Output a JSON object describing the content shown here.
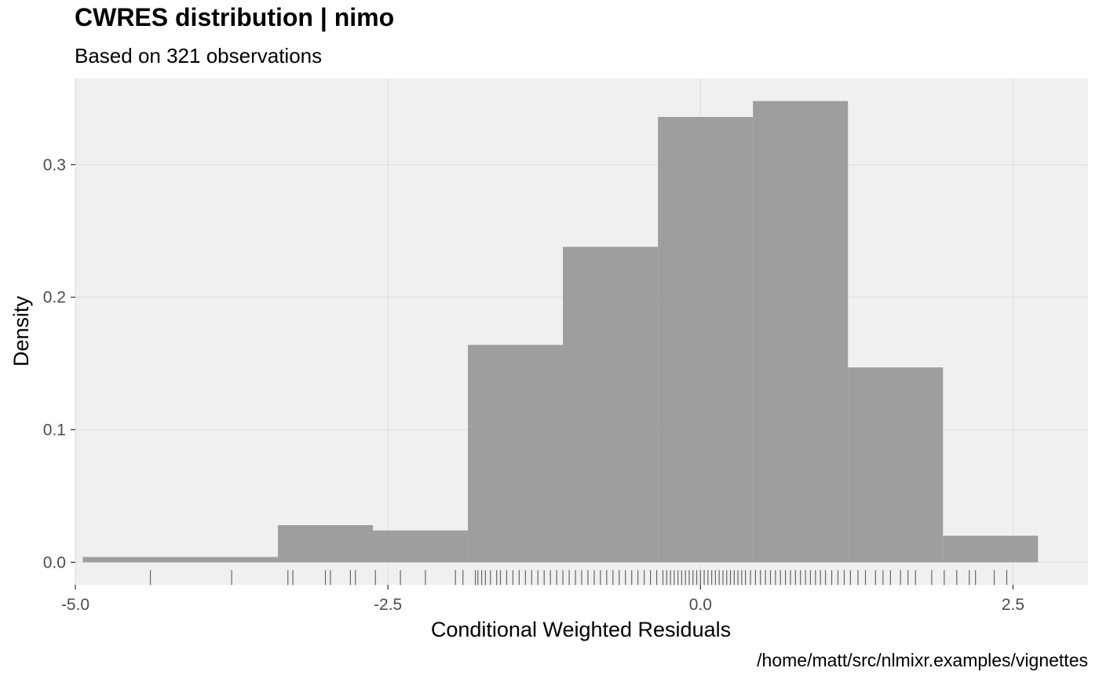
{
  "title": "CWRES distribution | nimo",
  "subtitle": "Based on 321 observations",
  "caption": "/home/matt/src/nlmixr.examples/vignettes",
  "chart_data": {
    "type": "bar",
    "title": "CWRES distribution | nimo",
    "subtitle": "Based on 321 observations",
    "xlabel": "Conditional Weighted Residuals",
    "ylabel": "Density",
    "xlim": [
      -5.0,
      3.1
    ],
    "ylim": [
      -0.017,
      0.365
    ],
    "x_ticks": [
      -5.0,
      -2.5,
      0.0,
      2.5
    ],
    "x_tick_labels": [
      "-5.0",
      "-2.5",
      "0.0",
      "2.5"
    ],
    "y_ticks": [
      0.0,
      0.1,
      0.2,
      0.3
    ],
    "y_tick_labels": [
      "0.0",
      "0.1",
      "0.2",
      "0.3"
    ],
    "grid": true,
    "colors": {
      "panel": "#f0f0f0",
      "grid": "#e0e0e0",
      "bar": "#999999",
      "rug": "#666666"
    },
    "bins": [
      {
        "xmin": -4.94,
        "xmax": -3.38,
        "density": 0.004
      },
      {
        "xmin": -3.38,
        "xmax": -2.62,
        "density": 0.028
      },
      {
        "xmin": -2.62,
        "xmax": -1.86,
        "density": 0.024
      },
      {
        "xmin": -1.86,
        "xmax": -1.1,
        "density": 0.164
      },
      {
        "xmin": -1.1,
        "xmax": -0.34,
        "density": 0.238
      },
      {
        "xmin": -0.34,
        "xmax": 0.42,
        "density": 0.336
      },
      {
        "xmin": 0.42,
        "xmax": 1.18,
        "density": 0.348
      },
      {
        "xmin": 1.18,
        "xmax": 1.94,
        "density": 0.147
      },
      {
        "xmin": 1.94,
        "xmax": 2.7,
        "density": 0.02
      }
    ],
    "rug": [
      -4.4,
      -3.75,
      -3.3,
      -3.26,
      -3.0,
      -2.96,
      -2.8,
      -2.76,
      -2.6,
      -2.4,
      -2.2,
      -1.96,
      -1.9,
      -1.8,
      -1.78,
      -1.75,
      -1.72,
      -1.68,
      -1.63,
      -1.6,
      -1.55,
      -1.5,
      -1.45,
      -1.4,
      -1.35,
      -1.3,
      -1.25,
      -1.2,
      -1.15,
      -1.1,
      -1.05,
      -1.0,
      -0.95,
      -0.9,
      -0.85,
      -0.8,
      -0.75,
      -0.7,
      -0.65,
      -0.6,
      -0.55,
      -0.5,
      -0.45,
      -0.4,
      -0.35,
      -0.3,
      -0.27,
      -0.24,
      -0.21,
      -0.18,
      -0.15,
      -0.12,
      -0.09,
      -0.06,
      -0.03,
      0.0,
      0.03,
      0.06,
      0.09,
      0.12,
      0.15,
      0.18,
      0.21,
      0.24,
      0.27,
      0.3,
      0.33,
      0.36,
      0.4,
      0.44,
      0.48,
      0.52,
      0.56,
      0.6,
      0.64,
      0.68,
      0.72,
      0.76,
      0.8,
      0.84,
      0.88,
      0.92,
      0.96,
      1.0,
      1.05,
      1.1,
      1.15,
      1.2,
      1.26,
      1.32,
      1.4,
      1.46,
      1.52,
      1.6,
      1.66,
      1.72,
      1.85,
      1.95,
      2.05,
      2.15,
      2.2,
      2.35,
      2.45
    ]
  }
}
